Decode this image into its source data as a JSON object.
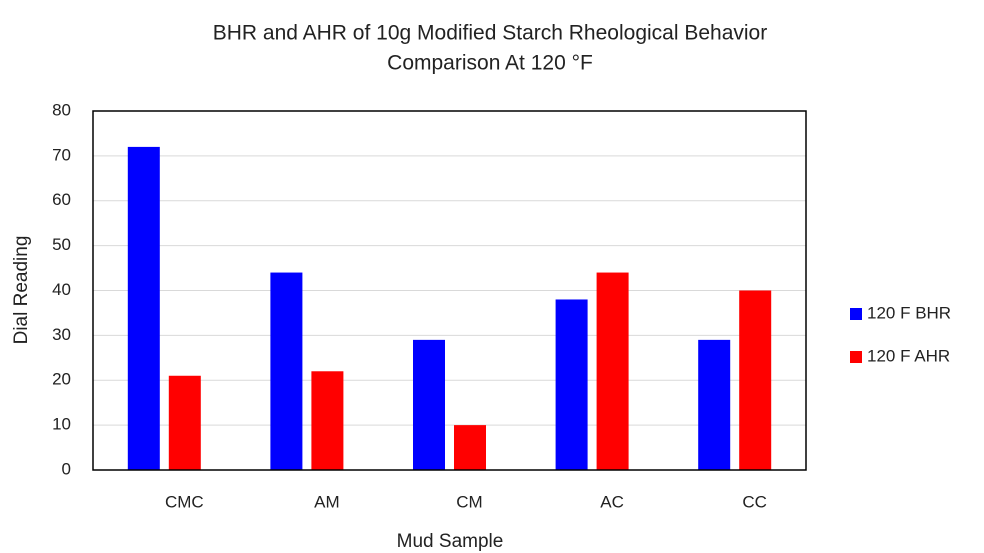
{
  "chart_data": {
    "type": "bar",
    "title": [
      "BHR and AHR of 10g Modified Starch Rheological Behavior",
      "Comparison At 120 °F"
    ],
    "x_label": "Mud Sample",
    "y_label": "Dial Reading",
    "categories": [
      "CMC",
      "AM",
      "CM",
      "AC",
      "CC"
    ],
    "series": [
      {
        "name": "120 F BHR",
        "color": "#0000ff",
        "values": [
          72,
          44,
          29,
          38,
          29
        ]
      },
      {
        "name": "120 F AHR",
        "color": "#ff0000",
        "values": [
          21,
          22,
          10,
          44,
          40
        ]
      }
    ],
    "ylim": [
      0,
      80
    ],
    "yticks": [
      0,
      10,
      20,
      30,
      40,
      50,
      60,
      70,
      80
    ],
    "grid": true,
    "legend": "right"
  }
}
